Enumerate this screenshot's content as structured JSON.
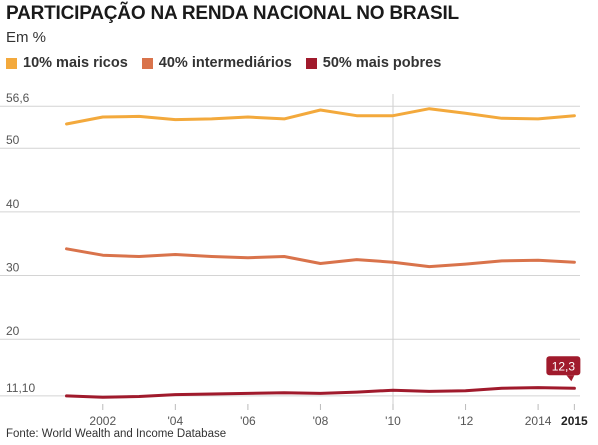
{
  "header": {
    "title": "PARTICIPAÇÃO NA RENDA NACIONAL NO BRASIL",
    "subtitle": "Em %"
  },
  "source": "Fonte: World Wealth and Income Database",
  "chart_data": {
    "type": "line",
    "title": "PARTICIPAÇÃO NA RENDA NACIONAL NO BRASIL",
    "subtitle": "Em %",
    "xlabel": "",
    "ylabel": "",
    "x": [
      2001,
      2002,
      2003,
      2004,
      2005,
      2006,
      2007,
      2008,
      2009,
      2010,
      2011,
      2012,
      2013,
      2014,
      2015
    ],
    "x_tick_labels": [
      {
        "x": 2002,
        "label": "2002",
        "bold": false
      },
      {
        "x": 2004,
        "label": "'04",
        "bold": false
      },
      {
        "x": 2006,
        "label": "'06",
        "bold": false
      },
      {
        "x": 2008,
        "label": "'08",
        "bold": false
      },
      {
        "x": 2010,
        "label": "'10",
        "bold": false
      },
      {
        "x": 2012,
        "label": "'12",
        "bold": false
      },
      {
        "x": 2014,
        "label": "2014",
        "bold": false
      },
      {
        "x": 2015,
        "label": "2015",
        "bold": true
      }
    ],
    "y_tick_labels": [
      {
        "y": 56.6,
        "label": "56,6"
      },
      {
        "y": 50,
        "label": "50"
      },
      {
        "y": 40,
        "label": "40"
      },
      {
        "y": 30,
        "label": "30"
      },
      {
        "y": 20,
        "label": "20"
      },
      {
        "y": 11.1,
        "label": "11,10"
      }
    ],
    "ylim": [
      9.2,
      58.2
    ],
    "xlim": [
      2000.6,
      2015.1
    ],
    "grid": true,
    "legend_position": "top-left",
    "highlight_x": 2010,
    "series": [
      {
        "name": "10% mais ricos",
        "color": "#f3a93c",
        "values": [
          53.8,
          54.9,
          55.0,
          54.5,
          54.6,
          54.9,
          54.6,
          56.0,
          55.1,
          55.1,
          56.2,
          55.5,
          54.7,
          54.6,
          55.1
        ]
      },
      {
        "name": "40% intermediários",
        "color": "#d9734b",
        "values": [
          34.2,
          33.2,
          33.0,
          33.3,
          33.0,
          32.8,
          33.0,
          31.9,
          32.5,
          32.1,
          31.4,
          31.8,
          32.3,
          32.4,
          32.1
        ]
      },
      {
        "name": "50% mais pobres",
        "color": "#a01a2c",
        "values": [
          11.1,
          10.9,
          11.0,
          11.3,
          11.4,
          11.5,
          11.6,
          11.5,
          11.7,
          12.0,
          11.8,
          11.9,
          12.3,
          12.4,
          12.3
        ]
      }
    ],
    "annotation": {
      "x": 2015,
      "series": "50% mais pobres",
      "label": "12,3"
    }
  }
}
